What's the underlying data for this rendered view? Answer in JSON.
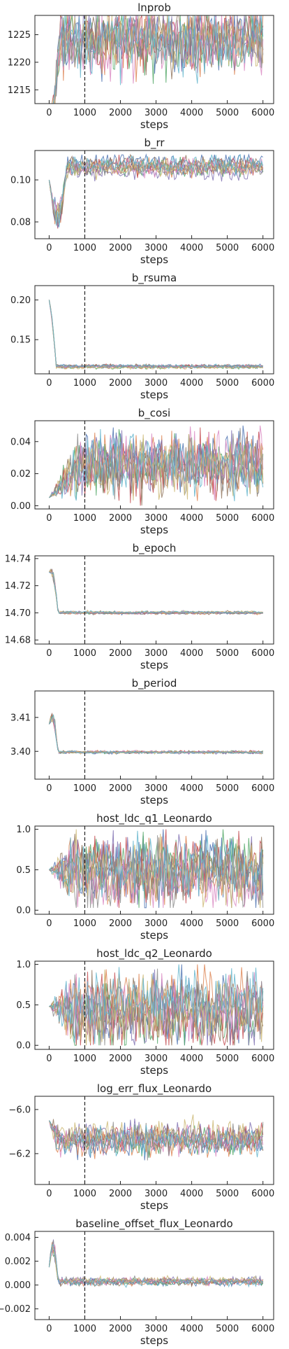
{
  "colors": [
    "#4c72b0",
    "#dd8452",
    "#55a868",
    "#c44e52",
    "#8172b3",
    "#937860",
    "#da8bc3",
    "#8c8c8c",
    "#ccb974",
    "#64b5cd"
  ],
  "burnin_marker": 1000,
  "chart_data": [
    {
      "type": "line",
      "title": "lnprob",
      "xlabel": "steps",
      "xlim": [
        -400,
        6300
      ],
      "ylim": [
        1212.5,
        1228.5
      ],
      "xticks": [
        0,
        1000,
        2000,
        3000,
        4000,
        5000,
        6000
      ],
      "xtick_labels": [
        "0",
        "1000",
        "2000",
        "3000",
        "4000",
        "5000",
        "6000"
      ],
      "yticks": [
        1215,
        1220,
        1225
      ],
      "ytick_labels": [
        "1215",
        "1220",
        "1225"
      ],
      "trace": {
        "start": 1203,
        "center": 1224,
        "noise": 4.2,
        "spike": 0,
        "converge_at": 300,
        "wander": 0.4,
        "min": 1212.5,
        "max": 1228.5
      }
    },
    {
      "type": "line",
      "title": "b_rr",
      "xlabel": "steps",
      "xlim": [
        -400,
        6300
      ],
      "ylim": [
        0.072,
        0.114
      ],
      "xticks": [
        0,
        1000,
        2000,
        3000,
        4000,
        5000,
        6000
      ],
      "xtick_labels": [
        "0",
        "1000",
        "2000",
        "3000",
        "4000",
        "5000",
        "6000"
      ],
      "yticks": [
        0.08,
        0.1
      ],
      "ytick_labels": [
        "0.08",
        "0.10"
      ],
      "trace": {
        "start": 0.1,
        "center": 0.106,
        "noise": 0.003,
        "spike": -0.022,
        "converge_at": 500,
        "wander": 0.002,
        "min": 0.075,
        "max": 0.112
      }
    },
    {
      "type": "line",
      "title": "b_rsuma",
      "xlabel": "steps",
      "xlim": [
        -400,
        6300
      ],
      "ylim": [
        0.107,
        0.218
      ],
      "xticks": [
        0,
        1000,
        2000,
        3000,
        4000,
        5000,
        6000
      ],
      "xtick_labels": [
        "0",
        "1000",
        "2000",
        "3000",
        "4000",
        "5000",
        "6000"
      ],
      "yticks": [
        0.15,
        0.2
      ],
      "ytick_labels": [
        "0.15",
        "0.20"
      ],
      "trace": {
        "start": 0.2,
        "center": 0.116,
        "noise": 0.0015,
        "spike": 0.01,
        "converge_at": 200,
        "wander": 0.001,
        "min": 0.11,
        "max": 0.213
      }
    },
    {
      "type": "line",
      "title": "b_cosi",
      "xlabel": "steps",
      "xlim": [
        -400,
        6300
      ],
      "ylim": [
        -0.002,
        0.053
      ],
      "xticks": [
        0,
        1000,
        2000,
        3000,
        4000,
        5000,
        6000
      ],
      "xtick_labels": [
        "0",
        "1000",
        "2000",
        "3000",
        "4000",
        "5000",
        "6000"
      ],
      "yticks": [
        0.0,
        0.02,
        0.04
      ],
      "ytick_labels": [
        "0.00",
        "0.02",
        "0.04"
      ],
      "trace": {
        "start": 0.005,
        "center": 0.025,
        "noise": 0.013,
        "spike": 0,
        "converge_at": 800,
        "wander": 0.004,
        "min": 0.0,
        "max": 0.05
      }
    },
    {
      "type": "line",
      "title": "b_epoch",
      "xlabel": "steps",
      "xlim": [
        -400,
        6300
      ],
      "ylim": [
        14.677,
        14.742
      ],
      "xticks": [
        0,
        1000,
        2000,
        3000,
        4000,
        5000,
        6000
      ],
      "xtick_labels": [
        "0",
        "1000",
        "2000",
        "3000",
        "4000",
        "5000",
        "6000"
      ],
      "yticks": [
        14.68,
        14.7,
        14.72,
        14.74
      ],
      "ytick_labels": [
        "14.68",
        "14.70",
        "14.72",
        "14.74"
      ],
      "trace": {
        "start": 14.73,
        "center": 14.7,
        "noise": 0.0007,
        "spike": 0.012,
        "converge_at": 250,
        "wander": 0.0004,
        "min": 14.68,
        "max": 14.738
      }
    },
    {
      "type": "line",
      "title": "b_period",
      "xlabel": "steps",
      "xlim": [
        -400,
        6300
      ],
      "ylim": [
        3.3918,
        3.4178
      ],
      "xticks": [
        0,
        1000,
        2000,
        3000,
        4000,
        5000,
        6000
      ],
      "xtick_labels": [
        "0",
        "1000",
        "2000",
        "3000",
        "4000",
        "5000",
        "6000"
      ],
      "yticks": [
        3.4,
        3.41
      ],
      "ytick_labels": [
        "3.40",
        "3.41"
      ],
      "trace": {
        "start": 3.408,
        "center": 3.3998,
        "noise": 0.0003,
        "spike": 0.006,
        "converge_at": 250,
        "wander": 0.0002,
        "min": 3.393,
        "max": 3.4165
      }
    },
    {
      "type": "line",
      "title": "host_ldc_q1_Leonardo",
      "xlabel": "steps",
      "xlim": [
        -400,
        6300
      ],
      "ylim": [
        -0.05,
        1.04
      ],
      "xticks": [
        0,
        1000,
        2000,
        3000,
        4000,
        5000,
        6000
      ],
      "xtick_labels": [
        "0",
        "1000",
        "2000",
        "3000",
        "4000",
        "5000",
        "6000"
      ],
      "yticks": [
        0.0,
        0.5,
        1.0
      ],
      "ytick_labels": [
        "0.0",
        "0.5",
        "1.0"
      ],
      "trace": {
        "start": 0.5,
        "center": 0.5,
        "noise": 0.28,
        "spike": 0,
        "converge_at": 600,
        "wander": 0.08,
        "min": 0.03,
        "max": 1.0
      }
    },
    {
      "type": "line",
      "title": "host_ldc_q2_Leonardo",
      "xlabel": "steps",
      "xlim": [
        -400,
        6300
      ],
      "ylim": [
        -0.05,
        1.04
      ],
      "xticks": [
        0,
        1000,
        2000,
        3000,
        4000,
        5000,
        6000
      ],
      "xtick_labels": [
        "0",
        "1000",
        "2000",
        "3000",
        "4000",
        "5000",
        "6000"
      ],
      "yticks": [
        0.0,
        0.5,
        1.0
      ],
      "ytick_labels": [
        "0.0",
        "0.5",
        "1.0"
      ],
      "trace": {
        "start": 0.48,
        "center": 0.45,
        "noise": 0.3,
        "spike": 0,
        "converge_at": 600,
        "wander": 0.08,
        "min": 0.0,
        "max": 1.0
      }
    },
    {
      "type": "line",
      "title": "log_err_flux_Leonardo",
      "xlabel": "steps",
      "xlim": [
        -400,
        6300
      ],
      "ylim": [
        -6.34,
        -5.94
      ],
      "xticks": [
        0,
        1000,
        2000,
        3000,
        4000,
        5000,
        6000
      ],
      "xtick_labels": [
        "0",
        "1000",
        "2000",
        "3000",
        "4000",
        "5000",
        "6000"
      ],
      "yticks": [
        -6.2,
        -6.0
      ],
      "ytick_labels": [
        "−6.2",
        "−6.0"
      ],
      "trace": {
        "start": -6.05,
        "center": -6.13,
        "noise": 0.045,
        "spike": 0,
        "converge_at": 200,
        "wander": 0.02,
        "min": -6.33,
        "max": -5.96
      }
    },
    {
      "type": "line",
      "title": "baseline_offset_flux_Leonardo",
      "xlabel": "steps",
      "xlim": [
        -400,
        6300
      ],
      "ylim": [
        -0.0029,
        0.0045
      ],
      "xticks": [
        0,
        1000,
        2000,
        3000,
        4000,
        5000,
        6000
      ],
      "xtick_labels": [
        "0",
        "1000",
        "2000",
        "3000",
        "4000",
        "5000",
        "6000"
      ],
      "yticks": [
        -0.002,
        0.0,
        0.002,
        0.004
      ],
      "ytick_labels": [
        "−0.002",
        "0.000",
        "0.002",
        "0.004"
      ],
      "trace": {
        "start": 0.0015,
        "center": 0.0003,
        "noise": 0.00022,
        "spike": 0.0025,
        "converge_at": 250,
        "wander": 0.0001,
        "min": -0.0026,
        "max": 0.0043
      }
    }
  ]
}
